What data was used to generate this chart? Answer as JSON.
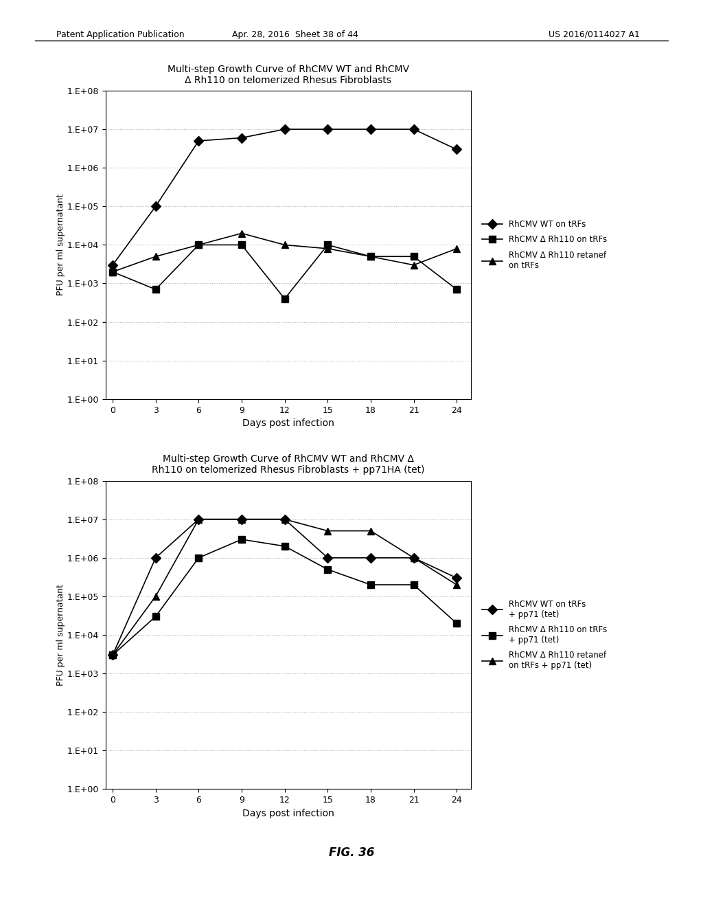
{
  "header_left": "Patent Application Publication",
  "header_mid": "Apr. 28, 2016  Sheet 38 of 44",
  "header_right": "US 2016/0114027 A1",
  "plot1": {
    "title_line1": "Multi-step Growth Curve of RhCMV WT and RhCMV",
    "title_line2": "Δ Rh110 on telomerized Rhesus Fibroblasts",
    "xlabel": "Days post infection",
    "ylabel": "PFU per ml supernatant",
    "xdata": [
      0,
      3,
      6,
      9,
      12,
      15,
      18,
      21,
      24
    ],
    "series1_y": [
      3000,
      100000,
      5000000,
      6000000,
      10000000,
      10000000,
      10000000,
      10000000,
      3000000
    ],
    "series2_y": [
      2000,
      700,
      10000,
      10000,
      400,
      10000,
      5000,
      5000,
      700
    ],
    "series3_y": [
      2000,
      5000,
      10000,
      20000,
      10000,
      8000,
      5000,
      3000,
      8000
    ],
    "legend1": "RhCMV WT on tRFs",
    "legend2": "RhCMV Δ Rh110 on tRFs",
    "legend3": "RhCMV Δ Rh110 retanef\non tRFs"
  },
  "plot2": {
    "title_line1": "Multi-step Growth Curve of RhCMV WT and RhCMV Δ",
    "title_line2": "Rh110 on telomerized Rhesus Fibroblasts + pp71HA (tet)",
    "xlabel": "Days post infection",
    "ylabel": "PFU per ml supernatant",
    "xdata": [
      0,
      3,
      6,
      9,
      12,
      15,
      18,
      21,
      24
    ],
    "series1_y": [
      3000,
      1000000,
      10000000,
      10000000,
      10000000,
      1000000,
      1000000,
      1000000,
      300000
    ],
    "series2_y": [
      3000,
      30000,
      1000000,
      3000000,
      2000000,
      500000,
      200000,
      200000,
      20000
    ],
    "series3_y": [
      3000,
      100000,
      10000000,
      10000000,
      10000000,
      5000000,
      5000000,
      1000000,
      200000
    ],
    "legend1": "RhCMV WT on tRFs\n+ pp71 (tet)",
    "legend2": "RhCMV Δ Rh110 on tRFs\n+ pp71 (tet)",
    "legend3": "RhCMV Δ Rh110 retanef\non tRFs + pp71 (tet)"
  },
  "fig_label": "FIG. 36",
  "bg_color": "#ffffff",
  "line_color": "#000000",
  "grid_color": "#aaaaaa"
}
